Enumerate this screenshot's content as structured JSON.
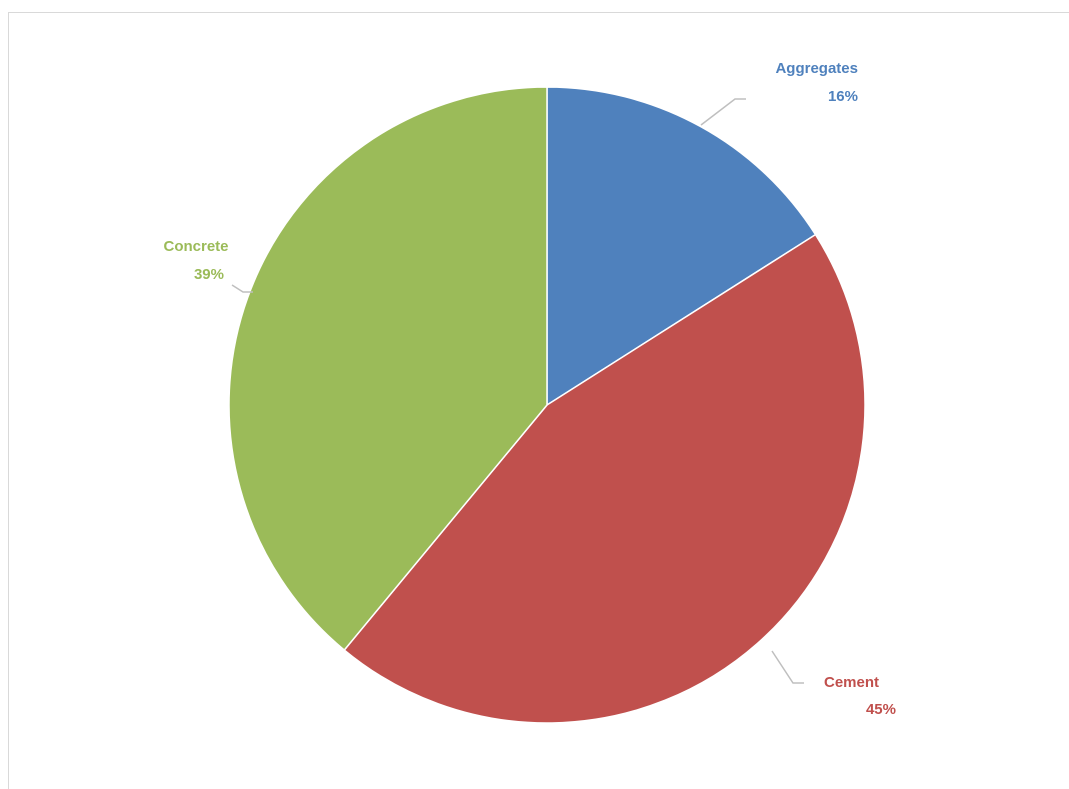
{
  "chart_data": {
    "type": "pie",
    "title": "",
    "slices": [
      {
        "label": "Aggregates",
        "value": 16,
        "value_label": "16%",
        "color": "#4F81BD"
      },
      {
        "label": "Cement",
        "value": 45,
        "value_label": "45%",
        "color": "#C0504D"
      },
      {
        "label": "Concrete",
        "value": 39,
        "value_label": "39%",
        "color": "#9BBB59"
      }
    ],
    "start_angle_deg": 0,
    "direction": "clockwise",
    "labels_outside_with_leader_lines": true,
    "leader_line_color": "#bfbfbf"
  }
}
